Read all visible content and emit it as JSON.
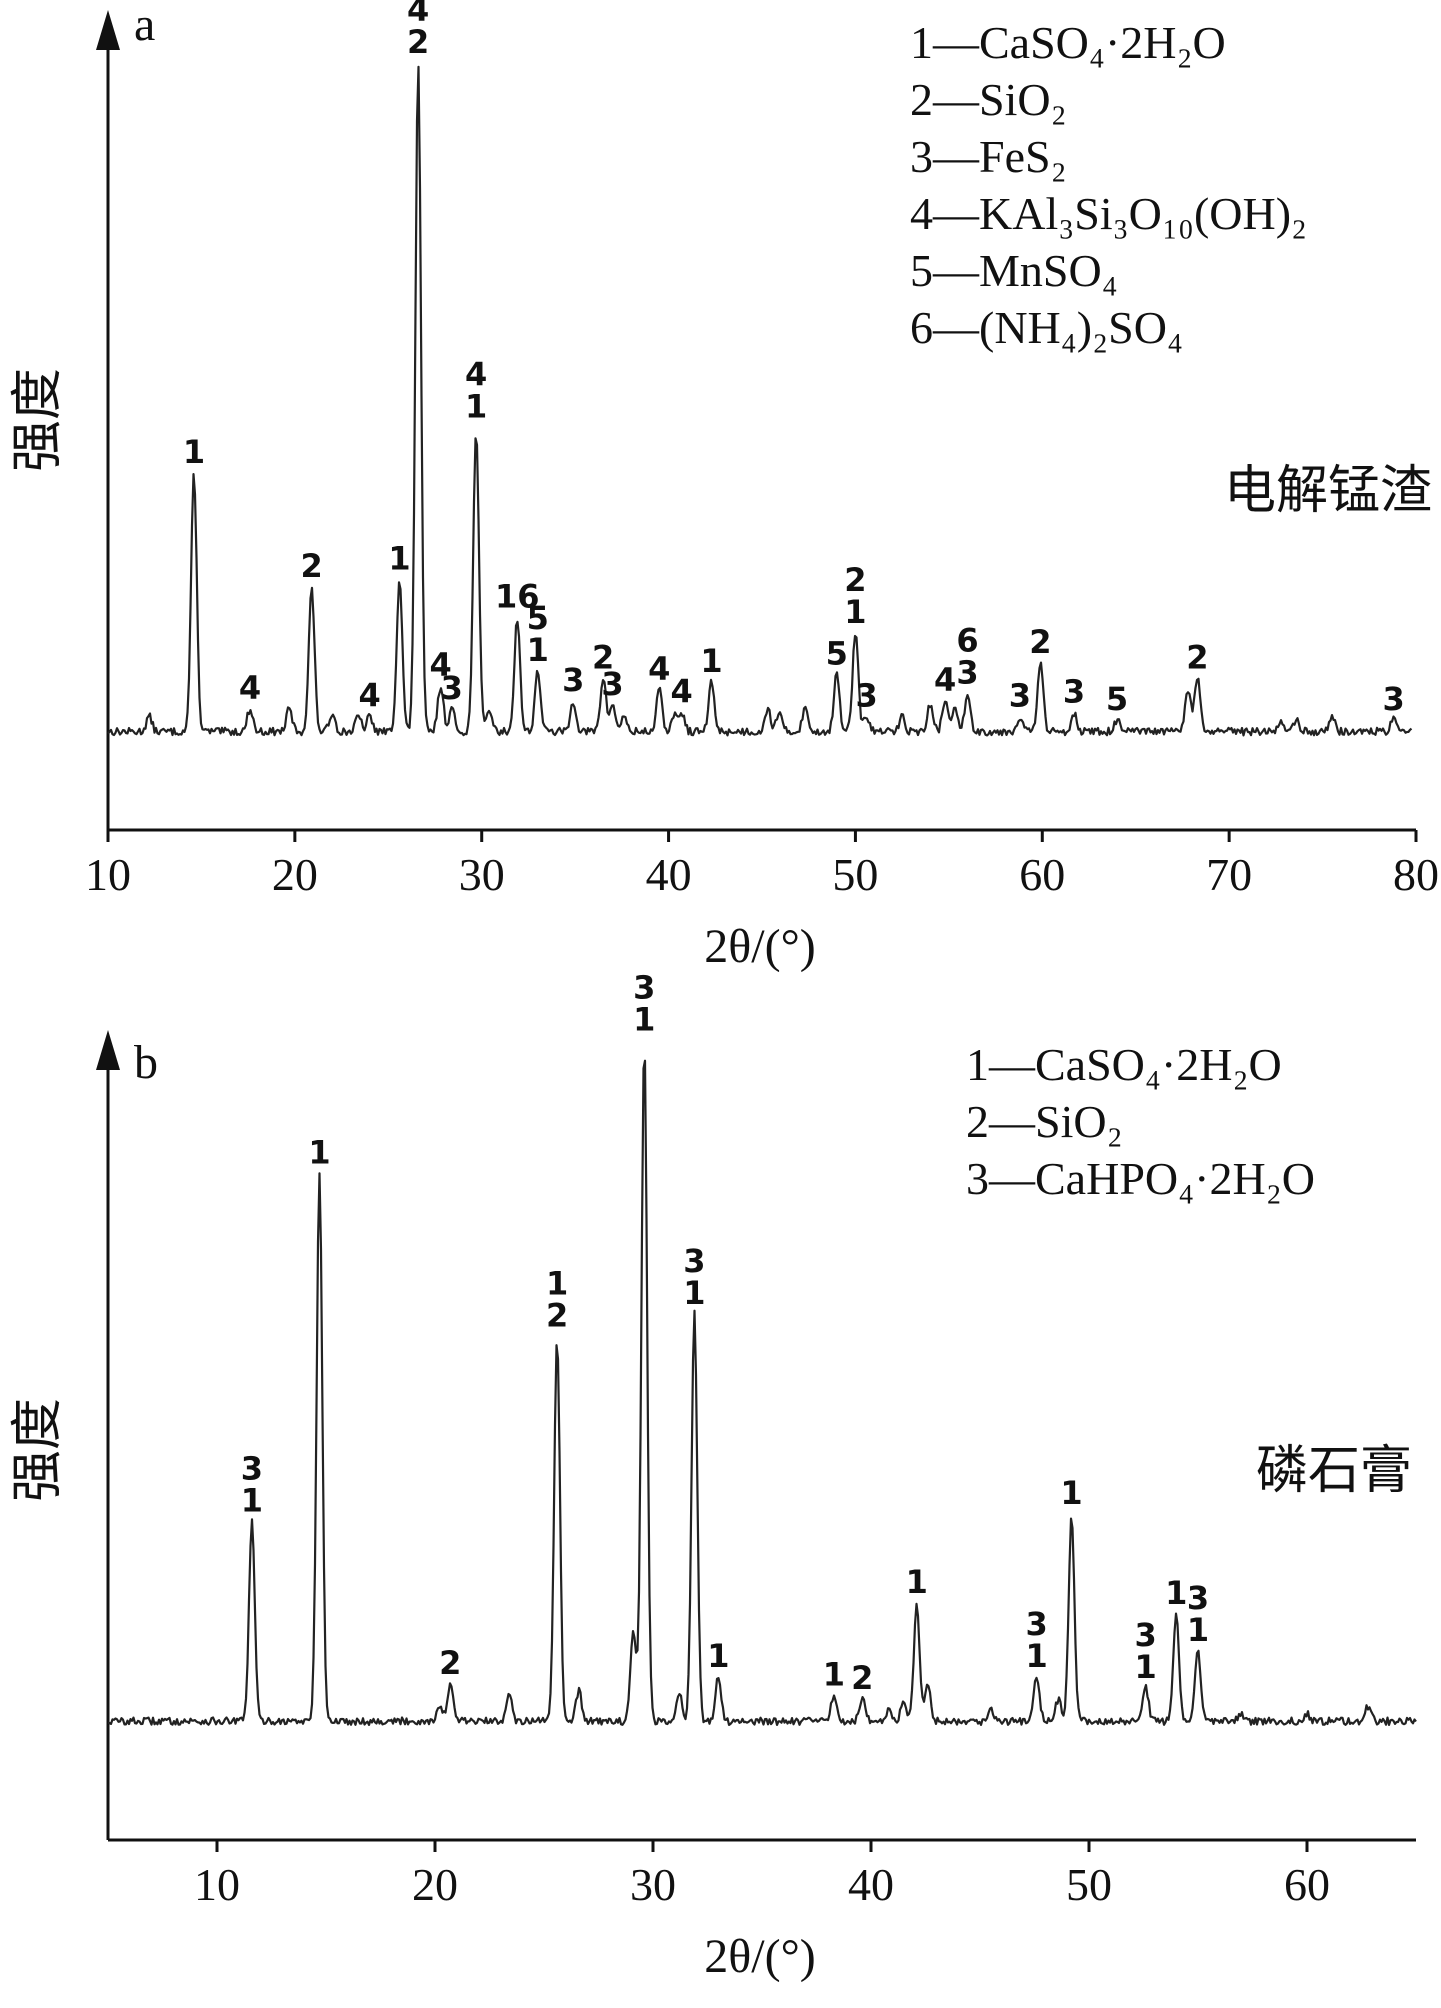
{
  "chart_data": [
    {
      "panel": "a",
      "type": "line",
      "sample_label": "电解锰渣",
      "ylabel": "强度",
      "xlabel": "2θ/(°)",
      "xlim": [
        10,
        80
      ],
      "ylim": [
        0,
        100
      ],
      "xticks": [
        "10",
        "20",
        "30",
        "40",
        "50",
        "60",
        "70",
        "80"
      ],
      "y_ticks_shown": false,
      "legend_placement": "top-right",
      "legend": [
        {
          "key": "1",
          "dash": "—",
          "phase": "CaSO₄·2H₂O"
        },
        {
          "key": "2",
          "dash": "—",
          "phase": "SiO₂"
        },
        {
          "key": "3",
          "dash": "—",
          "phase": "FeS₂"
        },
        {
          "key": "4",
          "dash": "—",
          "phase": "KAl₃Si₃O₁₀(OH)₂"
        },
        {
          "key": "5",
          "dash": "—",
          "phase": "MnSO₄"
        },
        {
          "key": "6",
          "dash": "—",
          "phase": "(NH₄)₂SO₄"
        }
      ],
      "baseline": 9,
      "noise_amplitude": 0.5,
      "peaks": [
        {
          "x": 12.2,
          "y": 2
        },
        {
          "x": 14.6,
          "y": 34,
          "label": "1"
        },
        {
          "x": 17.6,
          "y": 3,
          "label": "4"
        },
        {
          "x": 19.7,
          "y": 3
        },
        {
          "x": 20.9,
          "y": 19,
          "label": "2"
        },
        {
          "x": 22.0,
          "y": 2.5
        },
        {
          "x": 23.4,
          "y": 2
        },
        {
          "x": 24.0,
          "y": 2,
          "label": "4"
        },
        {
          "x": 25.6,
          "y": 20,
          "label": "1"
        },
        {
          "x": 26.6,
          "y": 88,
          "label": "4\n2"
        },
        {
          "x": 27.8,
          "y": 6,
          "label": "4"
        },
        {
          "x": 28.4,
          "y": 3,
          "label": "3"
        },
        {
          "x": 29.7,
          "y": 40,
          "label": "4\n1"
        },
        {
          "x": 30.4,
          "y": 3
        },
        {
          "x": 31.9,
          "y": 15,
          "label": "16"
        },
        {
          "x": 33.0,
          "y": 8,
          "label": "5\n1"
        },
        {
          "x": 34.9,
          "y": 4,
          "label": "3"
        },
        {
          "x": 36.5,
          "y": 7,
          "label": "2"
        },
        {
          "x": 37.0,
          "y": 3.5,
          "label": "3"
        },
        {
          "x": 37.6,
          "y": 2
        },
        {
          "x": 39.5,
          "y": 5.5,
          "label": "4"
        },
        {
          "x": 40.3,
          "y": 2
        },
        {
          "x": 40.7,
          "y": 2.5,
          "label": "4"
        },
        {
          "x": 42.3,
          "y": 6.5,
          "label": "1"
        },
        {
          "x": 45.3,
          "y": 3
        },
        {
          "x": 45.9,
          "y": 2.5
        },
        {
          "x": 47.3,
          "y": 3
        },
        {
          "x": 49.0,
          "y": 7.5,
          "label": "5"
        },
        {
          "x": 50.0,
          "y": 13,
          "label": "2\n1"
        },
        {
          "x": 50.6,
          "y": 2,
          "label": "3"
        },
        {
          "x": 52.5,
          "y": 2
        },
        {
          "x": 54.0,
          "y": 3.5
        },
        {
          "x": 54.8,
          "y": 4,
          "label": "4"
        },
        {
          "x": 55.3,
          "y": 3
        },
        {
          "x": 56.0,
          "y": 5,
          "label": "6\n3"
        },
        {
          "x": 58.8,
          "y": 2,
          "label": "3"
        },
        {
          "x": 59.9,
          "y": 9,
          "label": "2"
        },
        {
          "x": 61.7,
          "y": 2.5,
          "label": "3"
        },
        {
          "x": 64.0,
          "y": 1.5,
          "label": "5"
        },
        {
          "x": 67.8,
          "y": 5.5
        },
        {
          "x": 68.3,
          "y": 7,
          "label": "2"
        },
        {
          "x": 72.8,
          "y": 1.5
        },
        {
          "x": 73.6,
          "y": 1.5
        },
        {
          "x": 75.5,
          "y": 2
        },
        {
          "x": 78.8,
          "y": 1.5,
          "label": "3"
        },
        {
          "x": 80.0,
          "y": 3
        }
      ]
    },
    {
      "panel": "b",
      "type": "line",
      "sample_label": "磷石膏",
      "ylabel": "强度",
      "xlabel": "2θ/(°)",
      "xlim": [
        5,
        65
      ],
      "ylim": [
        0,
        100
      ],
      "xticks": [
        "10",
        "20",
        "30",
        "40",
        "50",
        "60"
      ],
      "y_ticks_shown": false,
      "legend_placement": "top-right",
      "legend": [
        {
          "key": "1",
          "dash": "—",
          "phase": "CaSO₄·2H₂O"
        },
        {
          "key": "2",
          "dash": "—",
          "phase": "SiO₂"
        },
        {
          "key": "3",
          "dash": "—",
          "phase": "CaHPO₄·2H₂O"
        }
      ],
      "baseline": 12,
      "noise_amplitude": 0.5,
      "peaks": [
        {
          "x": 11.6,
          "y": 27,
          "label": "3\n1"
        },
        {
          "x": 14.7,
          "y": 74,
          "label": "1"
        },
        {
          "x": 20.2,
          "y": 2
        },
        {
          "x": 20.7,
          "y": 5,
          "label": "2"
        },
        {
          "x": 23.4,
          "y": 4
        },
        {
          "x": 25.6,
          "y": 52,
          "label": "1\n2"
        },
        {
          "x": 26.6,
          "y": 4
        },
        {
          "x": 29.1,
          "y": 12
        },
        {
          "x": 29.6,
          "y": 92,
          "label": "3\n1"
        },
        {
          "x": 31.2,
          "y": 4
        },
        {
          "x": 31.9,
          "y": 55,
          "label": "3\n1"
        },
        {
          "x": 33.0,
          "y": 6,
          "label": "1"
        },
        {
          "x": 38.3,
          "y": 3.5,
          "label": "1"
        },
        {
          "x": 39.6,
          "y": 3,
          "label": "2"
        },
        {
          "x": 40.8,
          "y": 1.5
        },
        {
          "x": 41.5,
          "y": 2.5
        },
        {
          "x": 42.1,
          "y": 16,
          "label": "1"
        },
        {
          "x": 42.6,
          "y": 5
        },
        {
          "x": 45.5,
          "y": 1.5
        },
        {
          "x": 47.6,
          "y": 6,
          "label": "3\n1"
        },
        {
          "x": 48.6,
          "y": 3
        },
        {
          "x": 49.2,
          "y": 28,
          "label": "1"
        },
        {
          "x": 52.6,
          "y": 4.5,
          "label": "3\n1"
        },
        {
          "x": 54.0,
          "y": 14.5,
          "label": "1"
        },
        {
          "x": 55.0,
          "y": 9.5,
          "label": "3\n1"
        },
        {
          "x": 57.0,
          "y": 1
        },
        {
          "x": 60.0,
          "y": 1
        },
        {
          "x": 62.8,
          "y": 2
        }
      ]
    }
  ]
}
